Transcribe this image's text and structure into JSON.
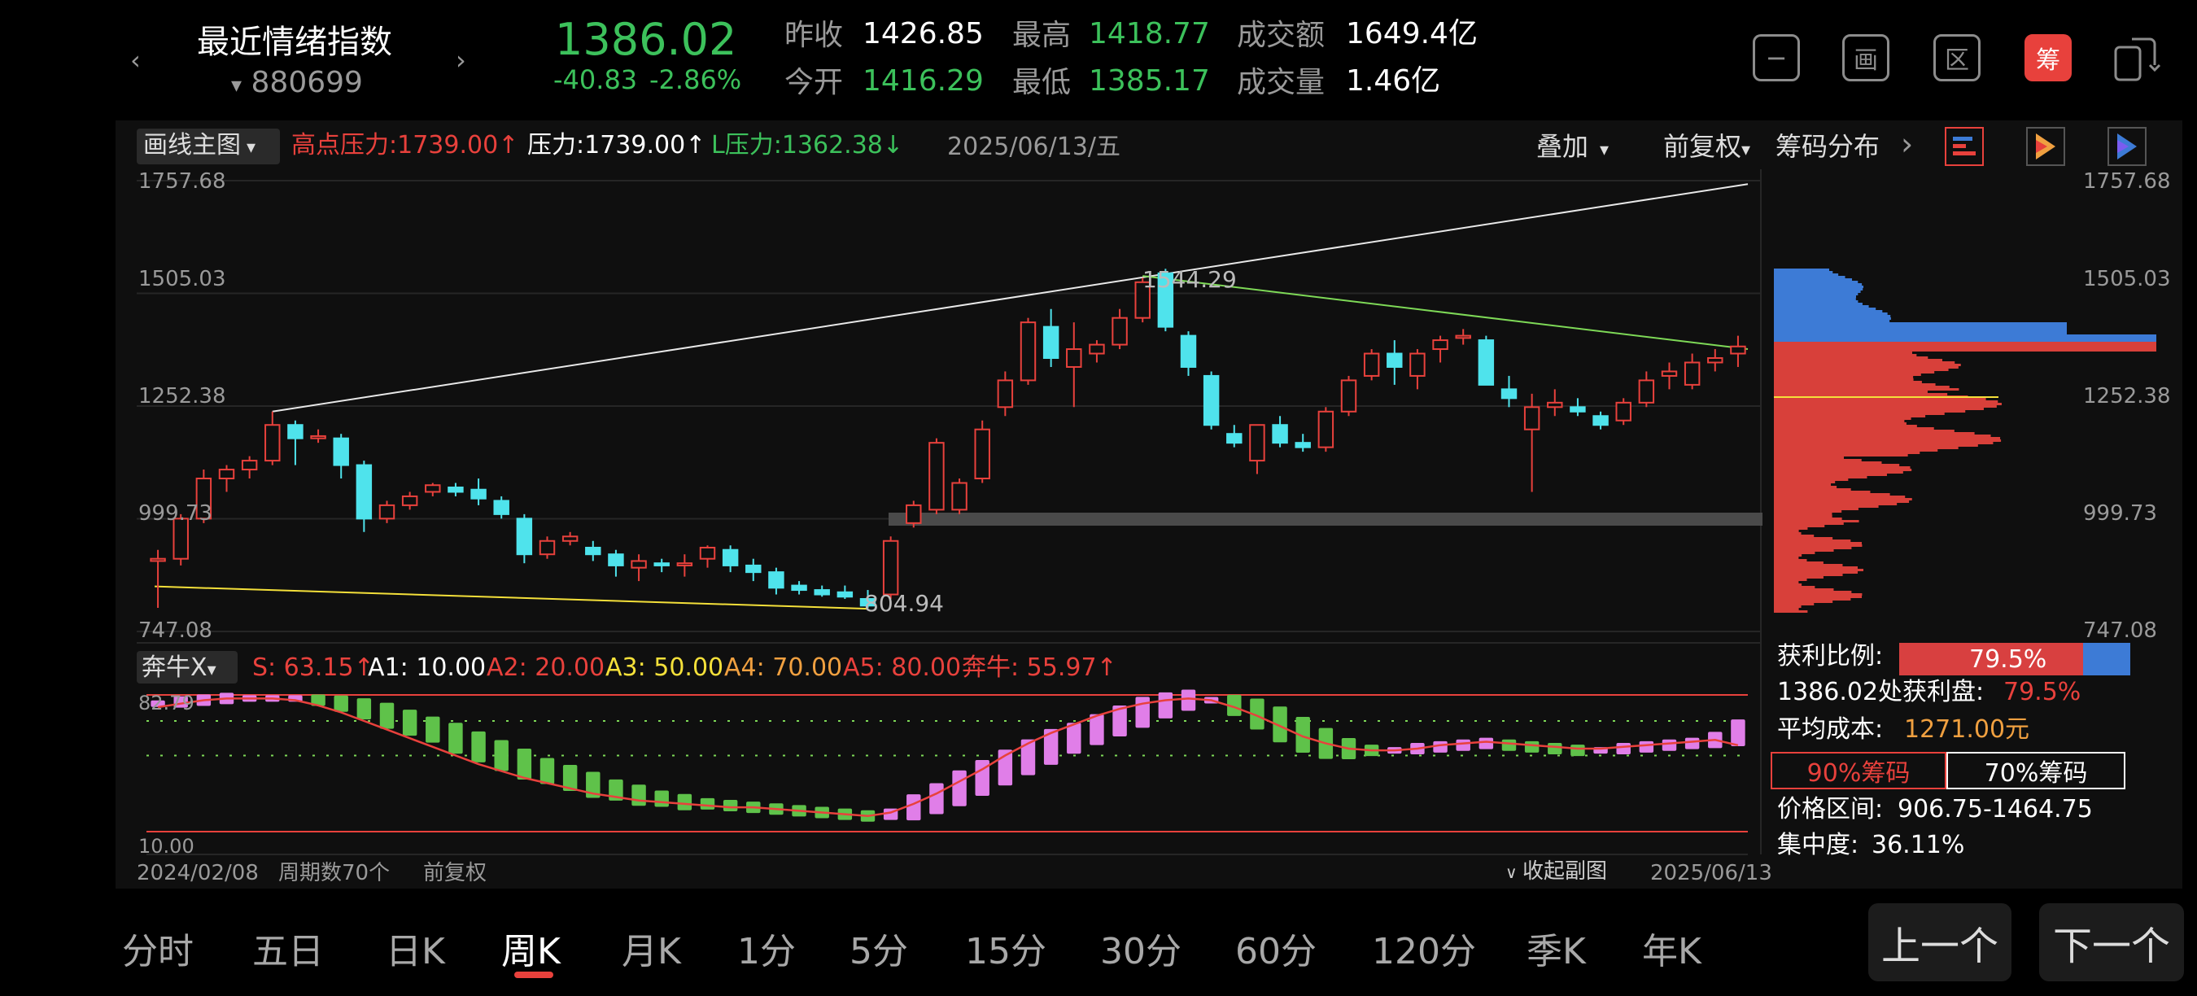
{
  "header": {
    "index_name": "最近情绪指数",
    "code_prefix": "▾",
    "index_code": "880699",
    "price": "1386.02",
    "change": "-40.83",
    "change_pct": "-2.86%",
    "prev_close_label": "昨收",
    "prev_close": "1426.85",
    "open_label": "今开",
    "open": "1416.29",
    "high_label": "最高",
    "high": "1418.77",
    "low_label": "最低",
    "low": "1385.17",
    "amount_label": "成交额",
    "amount": "1649.4亿",
    "volume_label": "成交量",
    "volume": "1.46亿",
    "tool_icons": [
      "minimize-icon",
      "draw-icon",
      "range-icon",
      "chips-icon",
      "screen-switch-icon"
    ],
    "chips_btn": "筹",
    "draw_btn": "画",
    "range_btn": "区"
  },
  "chart_bar": {
    "main_label": "画线主图",
    "high_pressure": "高点压力:1739.00↑",
    "pressure": "压力:1739.00↑",
    "l_pressure": "L压力:1362.38↓",
    "date": "2025/06/13/五",
    "overlay": "叠加",
    "adjust": "前复权",
    "chips_title": "筹码分布"
  },
  "y_axis_left": [
    "1757.68",
    "1505.03",
    "1252.38",
    "999.73",
    "747.08"
  ],
  "y_axis_right": [
    "1757.68",
    "1505.03",
    "1252.38",
    "999.73",
    "747.08"
  ],
  "annotations": {
    "peak": "1544.29",
    "trough": "804.94"
  },
  "indicator": {
    "name": "奔牛X",
    "s": "S: 63.15↑",
    "a1": "A1: 10.00",
    "a2": "A2: 20.00",
    "a3": "A3: 50.00",
    "a4": "A4: 70.00",
    "a5": "A5: 80.00",
    "bull": "奔牛: 55.97↑",
    "top_value": "82.79",
    "bottom_value": "10.00"
  },
  "footer_bar": {
    "start_date": "2024/02/08",
    "period_count": "周期数70个",
    "adjust": "前复权",
    "collapse": "收起副图",
    "end_date": "2025/06/13"
  },
  "chips_stats": {
    "profit_ratio_label": "获利比例:",
    "profit_ratio": "79.5%",
    "profit_at_label": "1386.02处获利盘:",
    "profit_at": "79.5%",
    "avg_cost_label": "平均成本:",
    "avg_cost": "1271.00元",
    "tab_90": "90%筹码",
    "tab_70": "70%筹码",
    "range_label": "价格区间:",
    "range": "906.75-1464.75",
    "concentration_label": "集中度:",
    "concentration": "36.11%"
  },
  "tabs": [
    "分时",
    "五日",
    "日K",
    "周K",
    "月K",
    "1分",
    "5分",
    "15分",
    "30分",
    "60分",
    "120分",
    "季K",
    "年K"
  ],
  "active_tab": "周K",
  "nav": {
    "prev": "上一个",
    "next": "下一个"
  },
  "colors": {
    "up": "#e8413c",
    "down": "#4fe3ec",
    "green": "#3cc15b",
    "bg": "#0f0f0f"
  },
  "chart_data": {
    "type": "candlestick",
    "x_range": [
      "2024/02/08",
      "2025/06/13"
    ],
    "ylim": [
      747.08,
      1757.68
    ],
    "ohlc": [
      [
        905,
        930,
        800,
        910
      ],
      [
        910,
        1010,
        895,
        1000
      ],
      [
        1000,
        1110,
        990,
        1090
      ],
      [
        1090,
        1120,
        1060,
        1110
      ],
      [
        1110,
        1140,
        1090,
        1130
      ],
      [
        1130,
        1240,
        1120,
        1210
      ],
      [
        1210,
        1220,
        1120,
        1180
      ],
      [
        1180,
        1200,
        1170,
        1185
      ],
      [
        1180,
        1190,
        1090,
        1120
      ],
      [
        1120,
        1130,
        970,
        1000
      ],
      [
        1000,
        1040,
        990,
        1030
      ],
      [
        1030,
        1060,
        1020,
        1050
      ],
      [
        1060,
        1080,
        1050,
        1075
      ],
      [
        1070,
        1080,
        1050,
        1060
      ],
      [
        1065,
        1090,
        1030,
        1045
      ],
      [
        1040,
        1050,
        1000,
        1010
      ],
      [
        1000,
        1010,
        900,
        920
      ],
      [
        920,
        960,
        910,
        950
      ],
      [
        950,
        970,
        940,
        960
      ],
      [
        935,
        950,
        905,
        920
      ],
      [
        920,
        930,
        870,
        895
      ],
      [
        890,
        920,
        860,
        905
      ],
      [
        900,
        910,
        880,
        895
      ],
      [
        895,
        920,
        870,
        900
      ],
      [
        910,
        940,
        890,
        935
      ],
      [
        930,
        940,
        880,
        895
      ],
      [
        895,
        910,
        860,
        880
      ],
      [
        880,
        890,
        830,
        845
      ],
      [
        850,
        860,
        830,
        840
      ],
      [
        840,
        850,
        825,
        830
      ],
      [
        835,
        850,
        820,
        825
      ],
      [
        820,
        840,
        800,
        805
      ],
      [
        830,
        960,
        820,
        950
      ],
      [
        990,
        1040,
        980,
        1030
      ],
      [
        1020,
        1180,
        1010,
        1170
      ],
      [
        1020,
        1090,
        1010,
        1080
      ],
      [
        1090,
        1220,
        1080,
        1200
      ],
      [
        1250,
        1330,
        1230,
        1310
      ],
      [
        1310,
        1450,
        1300,
        1440
      ],
      [
        1430,
        1470,
        1340,
        1360
      ],
      [
        1340,
        1440,
        1250,
        1380
      ],
      [
        1370,
        1400,
        1350,
        1390
      ],
      [
        1390,
        1470,
        1380,
        1450
      ],
      [
        1450,
        1540,
        1440,
        1530
      ],
      [
        1550,
        1560,
        1420,
        1430
      ],
      [
        1410,
        1420,
        1320,
        1340
      ],
      [
        1320,
        1330,
        1200,
        1210
      ],
      [
        1190,
        1210,
        1160,
        1170
      ],
      [
        1130,
        1210,
        1100,
        1210
      ],
      [
        1210,
        1230,
        1160,
        1170
      ],
      [
        1170,
        1190,
        1150,
        1160
      ],
      [
        1160,
        1250,
        1150,
        1240
      ],
      [
        1240,
        1320,
        1230,
        1310
      ],
      [
        1320,
        1380,
        1310,
        1370
      ],
      [
        1370,
        1400,
        1300,
        1340
      ],
      [
        1320,
        1380,
        1290,
        1370
      ],
      [
        1380,
        1410,
        1350,
        1400
      ],
      [
        1405,
        1425,
        1390,
        1410
      ],
      [
        1400,
        1410,
        1300,
        1300
      ],
      [
        1290,
        1320,
        1250,
        1270
      ],
      [
        1200,
        1280,
        1060,
        1250
      ],
      [
        1250,
        1290,
        1230,
        1260
      ],
      [
        1250,
        1270,
        1230,
        1240
      ],
      [
        1230,
        1240,
        1200,
        1210
      ],
      [
        1220,
        1270,
        1210,
        1260
      ],
      [
        1260,
        1330,
        1250,
        1310
      ],
      [
        1320,
        1350,
        1290,
        1330
      ],
      [
        1300,
        1370,
        1290,
        1350
      ],
      [
        1350,
        1380,
        1330,
        1360
      ],
      [
        1370,
        1410,
        1340,
        1386
      ]
    ],
    "indicator_s": [
      80,
      81,
      82,
      83,
      83,
      83,
      83,
      82,
      80,
      77,
      73,
      69,
      65,
      60,
      55,
      50,
      45,
      41,
      37,
      33,
      30,
      27,
      25,
      23,
      22,
      21,
      20,
      19,
      18,
      17,
      16,
      15,
      16,
      20,
      25,
      31,
      37,
      43,
      49,
      55,
      60,
      65,
      70,
      75,
      79,
      82,
      82,
      79,
      74,
      68,
      62,
      57,
      54,
      53,
      53,
      54,
      55,
      56,
      57,
      56,
      55,
      54,
      53,
      53,
      54,
      55,
      56,
      57,
      59,
      63.15
    ],
    "indicator_bull": [
      78,
      80,
      82,
      83,
      83,
      83,
      82,
      79,
      75,
      70,
      65,
      60,
      55,
      50,
      45,
      41,
      37,
      34,
      31,
      28,
      26,
      24,
      23,
      22,
      21,
      20,
      20,
      19,
      18,
      17,
      16,
      15,
      17,
      22,
      28,
      35,
      42,
      50,
      57,
      63,
      68,
      73,
      77,
      80,
      82,
      83,
      82,
      78,
      73,
      67,
      61,
      57,
      54,
      53,
      53,
      54,
      56,
      57,
      58,
      57,
      56,
      55,
      54,
      54,
      55,
      56,
      57,
      58,
      59,
      55.97
    ],
    "indicator_ylim": [
      5,
      86
    ],
    "chip_distribution_bounds": [
      747.08,
      1757.68
    ]
  }
}
